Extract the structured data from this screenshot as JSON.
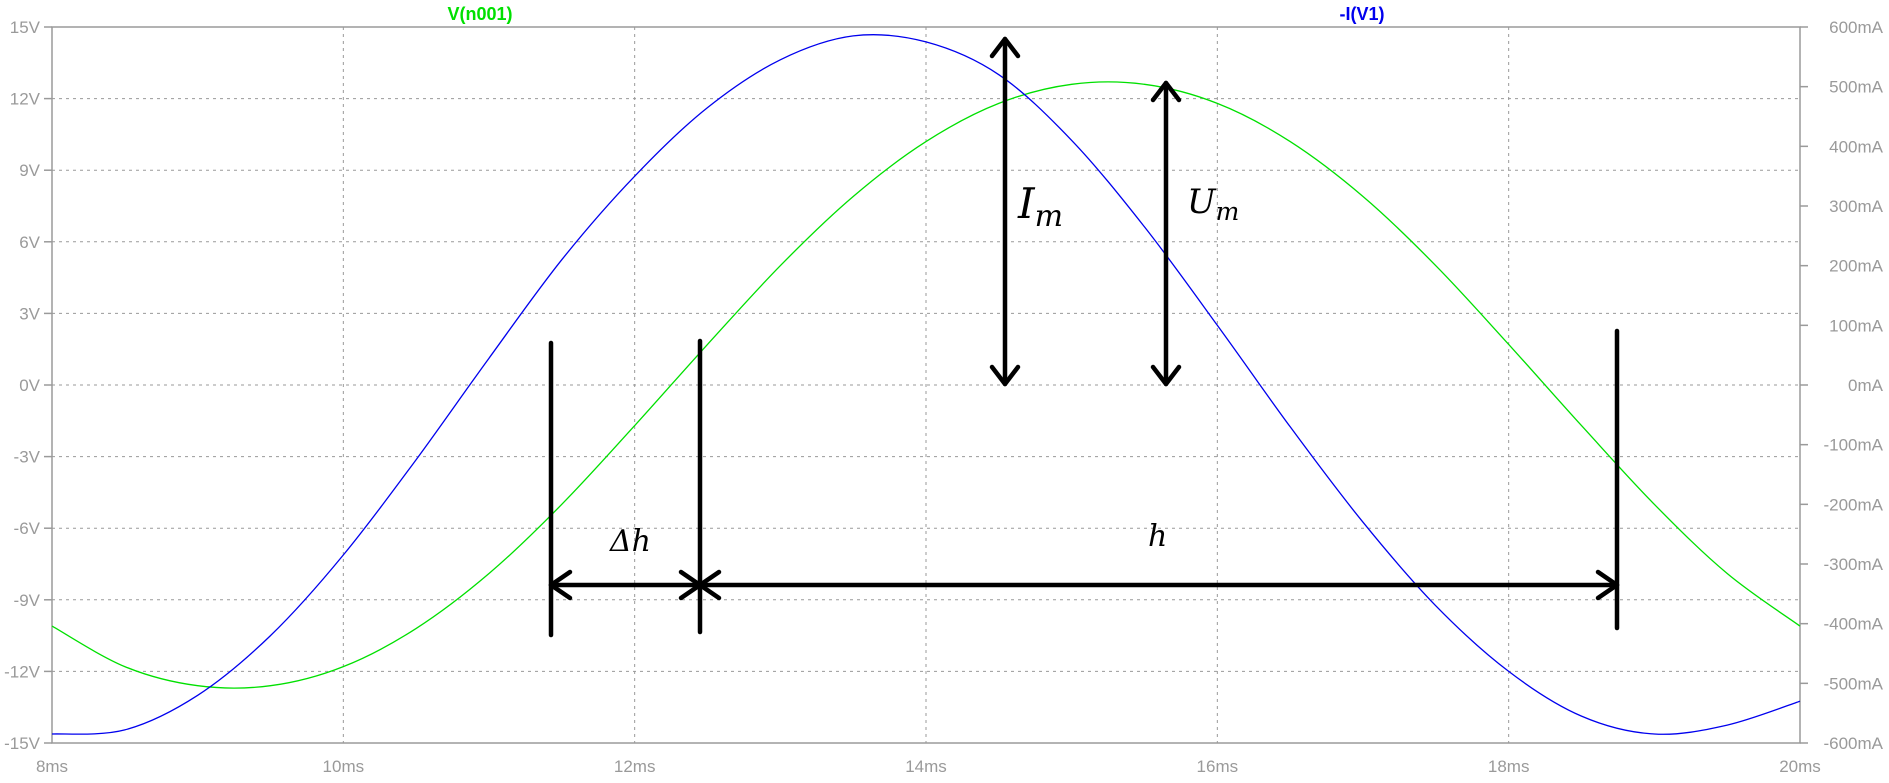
{
  "chart_data": {
    "type": "line",
    "x_axis": {
      "ticks": [
        "8ms",
        "10ms",
        "12ms",
        "14ms",
        "16ms",
        "18ms",
        "20ms"
      ],
      "range_ms": [
        8,
        20
      ]
    },
    "y_left": {
      "ticks": [
        "15V",
        "12V",
        "9V",
        "6V",
        "3V",
        "0V",
        "-3V",
        "-6V",
        "-9V",
        "-12V",
        "-15V"
      ],
      "range": [
        -15,
        15
      ],
      "unit": "V"
    },
    "y_right": {
      "ticks": [
        "600mA",
        "500mA",
        "400mA",
        "300mA",
        "200mA",
        "100mA",
        "0mA",
        "-100mA",
        "-200mA",
        "-300mA",
        "-400mA",
        "-500mA",
        "-600mA"
      ],
      "range": [
        -600,
        600
      ],
      "unit": "mA"
    },
    "grid": true,
    "series": [
      {
        "name": "V(n001)",
        "axis": "left",
        "color": "#00e000",
        "x_ms": [
          8,
          8.5,
          9,
          9.5,
          10,
          10.5,
          11,
          11.5,
          12,
          12.5,
          13,
          13.5,
          14,
          14.5,
          15,
          15.5,
          16,
          16.5,
          17,
          17.5,
          18,
          18.5,
          19,
          19.5,
          20
        ],
        "y": [
          -10.1,
          -11.8,
          -12.6,
          -12.6,
          -11.8,
          -10.2,
          -7.9,
          -5.0,
          -1.7,
          1.7,
          5.0,
          7.9,
          10.2,
          11.8,
          12.6,
          12.6,
          11.8,
          10.2,
          7.9,
          5.0,
          1.7,
          -1.7,
          -5.0,
          -7.9,
          -10.1
        ]
      },
      {
        "name": "-I(V1)",
        "axis": "right",
        "color": "#0000ee",
        "x_ms": [
          8,
          8.5,
          9,
          9.5,
          10,
          10.5,
          11,
          11.5,
          12,
          12.5,
          13,
          13.5,
          14,
          14.5,
          15,
          15.5,
          16,
          16.5,
          17,
          17.5,
          18,
          18.5,
          19,
          19.5,
          20
        ],
        "y": [
          -585,
          -578,
          -520,
          -420,
          -285,
          -125,
          45,
          210,
          350,
          465,
          545,
          585,
          575,
          520,
          410,
          265,
          100,
          -70,
          -230,
          -370,
          -480,
          -555,
          -585,
          -570,
          -530
        ]
      }
    ],
    "annotations": {
      "i_m": "I",
      "i_m_sub": "m",
      "u_m": "U",
      "u_m_sub": "m",
      "delta_h": "Δh",
      "h": "h"
    }
  }
}
